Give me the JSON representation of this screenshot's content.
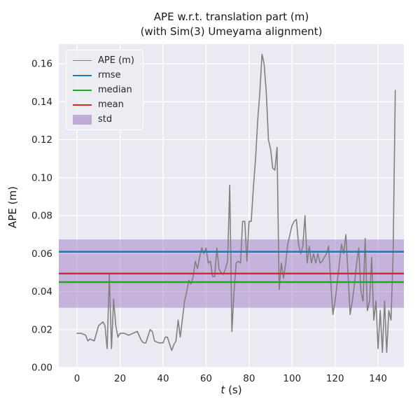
{
  "title": {
    "line1": "APE w.r.t. translation part (m)",
    "line2": "(with Sim(3) Umeyama alignment)"
  },
  "axis": {
    "xlabel": "t (s)",
    "xlabel_italic": "t",
    "xlabel_suffix": " (s)",
    "ylabel": "APE (m)"
  },
  "colors": {
    "plot_background": "#EAEAF2",
    "grid": "#ffffff",
    "ape_line": "#808080",
    "rmse": "#1f77b4",
    "median": "#2ca02c",
    "mean": "#d62728",
    "std_band": "#9467bd",
    "text": "#262626"
  },
  "chart_data": {
    "type": "line",
    "title": "APE w.r.t. translation part (m) (with Sim(3) Umeyama alignment)",
    "xlabel": "t (s)",
    "ylabel": "APE (m)",
    "xlim": [
      -8.5,
      152
    ],
    "ylim": [
      0,
      0.1704
    ],
    "xticks": [
      0,
      20,
      40,
      60,
      80,
      100,
      120,
      140
    ],
    "yticks": [
      0.0,
      0.02,
      0.04,
      0.06,
      0.08,
      0.1,
      0.12,
      0.14,
      0.16
    ],
    "grid": true,
    "legend_position": "upper left",
    "series": [
      {
        "name": "APE (m)",
        "color": "#808080",
        "points": [
          [
            0,
            0.018
          ],
          [
            2,
            0.018
          ],
          [
            4,
            0.017
          ],
          [
            5,
            0.014
          ],
          [
            6,
            0.015
          ],
          [
            8,
            0.014
          ],
          [
            10,
            0.022
          ],
          [
            12,
            0.024
          ],
          [
            13,
            0.022
          ],
          [
            14,
            0.01
          ],
          [
            15,
            0.049
          ],
          [
            16,
            0.01
          ],
          [
            17,
            0.036
          ],
          [
            18,
            0.022
          ],
          [
            19,
            0.016
          ],
          [
            20,
            0.018
          ],
          [
            22,
            0.018
          ],
          [
            24,
            0.017
          ],
          [
            26,
            0.018
          ],
          [
            28,
            0.019
          ],
          [
            30,
            0.014
          ],
          [
            31,
            0.013
          ],
          [
            32,
            0.013
          ],
          [
            34,
            0.02
          ],
          [
            35,
            0.019
          ],
          [
            36,
            0.014
          ],
          [
            38,
            0.013
          ],
          [
            40,
            0.013
          ],
          [
            41,
            0.016
          ],
          [
            42,
            0.016
          ],
          [
            44,
            0.009
          ],
          [
            45,
            0.012
          ],
          [
            46,
            0.014
          ],
          [
            47,
            0.025
          ],
          [
            48,
            0.016
          ],
          [
            50,
            0.035
          ],
          [
            51,
            0.04
          ],
          [
            52,
            0.046
          ],
          [
            53,
            0.044
          ],
          [
            54,
            0.048
          ],
          [
            55,
            0.056
          ],
          [
            56,
            0.052
          ],
          [
            57,
            0.058
          ],
          [
            58,
            0.063
          ],
          [
            59,
            0.06
          ],
          [
            60,
            0.063
          ],
          [
            61,
            0.055
          ],
          [
            62,
            0.056
          ],
          [
            63,
            0.048
          ],
          [
            64,
            0.048
          ],
          [
            65,
            0.063
          ],
          [
            66,
            0.052
          ],
          [
            67,
            0.05
          ],
          [
            68,
            0.049
          ],
          [
            69,
            0.052
          ],
          [
            70,
            0.056
          ],
          [
            71,
            0.096
          ],
          [
            72,
            0.019
          ],
          [
            73,
            0.04
          ],
          [
            74,
            0.055
          ],
          [
            75,
            0.056
          ],
          [
            76,
            0.055
          ],
          [
            77,
            0.077
          ],
          [
            78,
            0.077
          ],
          [
            79,
            0.056
          ],
          [
            80,
            0.077
          ],
          [
            81,
            0.077
          ],
          [
            82,
            0.095
          ],
          [
            83,
            0.11
          ],
          [
            84,
            0.13
          ],
          [
            85,
            0.145
          ],
          [
            86,
            0.165
          ],
          [
            87,
            0.16
          ],
          [
            88,
            0.145
          ],
          [
            89,
            0.12
          ],
          [
            90,
            0.115
          ],
          [
            91,
            0.105
          ],
          [
            92,
            0.104
          ],
          [
            93,
            0.116
          ],
          [
            94,
            0.041
          ],
          [
            95,
            0.055
          ],
          [
            96,
            0.047
          ],
          [
            97,
            0.055
          ],
          [
            98,
            0.065
          ],
          [
            99,
            0.07
          ],
          [
            100,
            0.075
          ],
          [
            101,
            0.077
          ],
          [
            102,
            0.078
          ],
          [
            103,
            0.065
          ],
          [
            104,
            0.06
          ],
          [
            105,
            0.064
          ],
          [
            106,
            0.08
          ],
          [
            107,
            0.055
          ],
          [
            108,
            0.064
          ],
          [
            109,
            0.055
          ],
          [
            110,
            0.06
          ],
          [
            111,
            0.055
          ],
          [
            112,
            0.06
          ],
          [
            113,
            0.055
          ],
          [
            114,
            0.056
          ],
          [
            115,
            0.058
          ],
          [
            116,
            0.06
          ],
          [
            117,
            0.064
          ],
          [
            118,
            0.045
          ],
          [
            119,
            0.028
          ],
          [
            120,
            0.035
          ],
          [
            121,
            0.045
          ],
          [
            122,
            0.055
          ],
          [
            123,
            0.065
          ],
          [
            124,
            0.06
          ],
          [
            125,
            0.07
          ],
          [
            126,
            0.05
          ],
          [
            127,
            0.028
          ],
          [
            128,
            0.035
          ],
          [
            129,
            0.044
          ],
          [
            130,
            0.055
          ],
          [
            131,
            0.063
          ],
          [
            132,
            0.04
          ],
          [
            133,
            0.035
          ],
          [
            134,
            0.068
          ],
          [
            135,
            0.03
          ],
          [
            136,
            0.035
          ],
          [
            137,
            0.058
          ],
          [
            138,
            0.025
          ],
          [
            139,
            0.035
          ],
          [
            140,
            0.01
          ],
          [
            141,
            0.03
          ],
          [
            142,
            0.008
          ],
          [
            143,
            0.035
          ],
          [
            144,
            0.008
          ],
          [
            145,
            0.03
          ],
          [
            146,
            0.025
          ],
          [
            147,
            0.06
          ],
          [
            148,
            0.146
          ]
        ]
      }
    ],
    "stat_lines": [
      {
        "name": "rmse",
        "value": 0.061,
        "color": "#1f77b4"
      },
      {
        "name": "median",
        "value": 0.045,
        "color": "#2ca02c"
      },
      {
        "name": "mean",
        "value": 0.0495,
        "color": "#d62728"
      }
    ],
    "band": {
      "name": "std",
      "low": 0.0315,
      "high": 0.0675,
      "color": "#9467bd",
      "opacity": 0.42
    },
    "legend_items": [
      {
        "label": "APE (m)",
        "color": "#808080",
        "kind": "line",
        "weight": 1.6
      },
      {
        "label": "rmse",
        "color": "#1f77b4",
        "kind": "line",
        "weight": 2.4
      },
      {
        "label": "median",
        "color": "#2ca02c",
        "kind": "line",
        "weight": 2.4
      },
      {
        "label": "mean",
        "color": "#d62728",
        "kind": "line",
        "weight": 2.4
      },
      {
        "label": "std",
        "color": "#9467bd",
        "kind": "patch",
        "weight": 0
      }
    ]
  }
}
